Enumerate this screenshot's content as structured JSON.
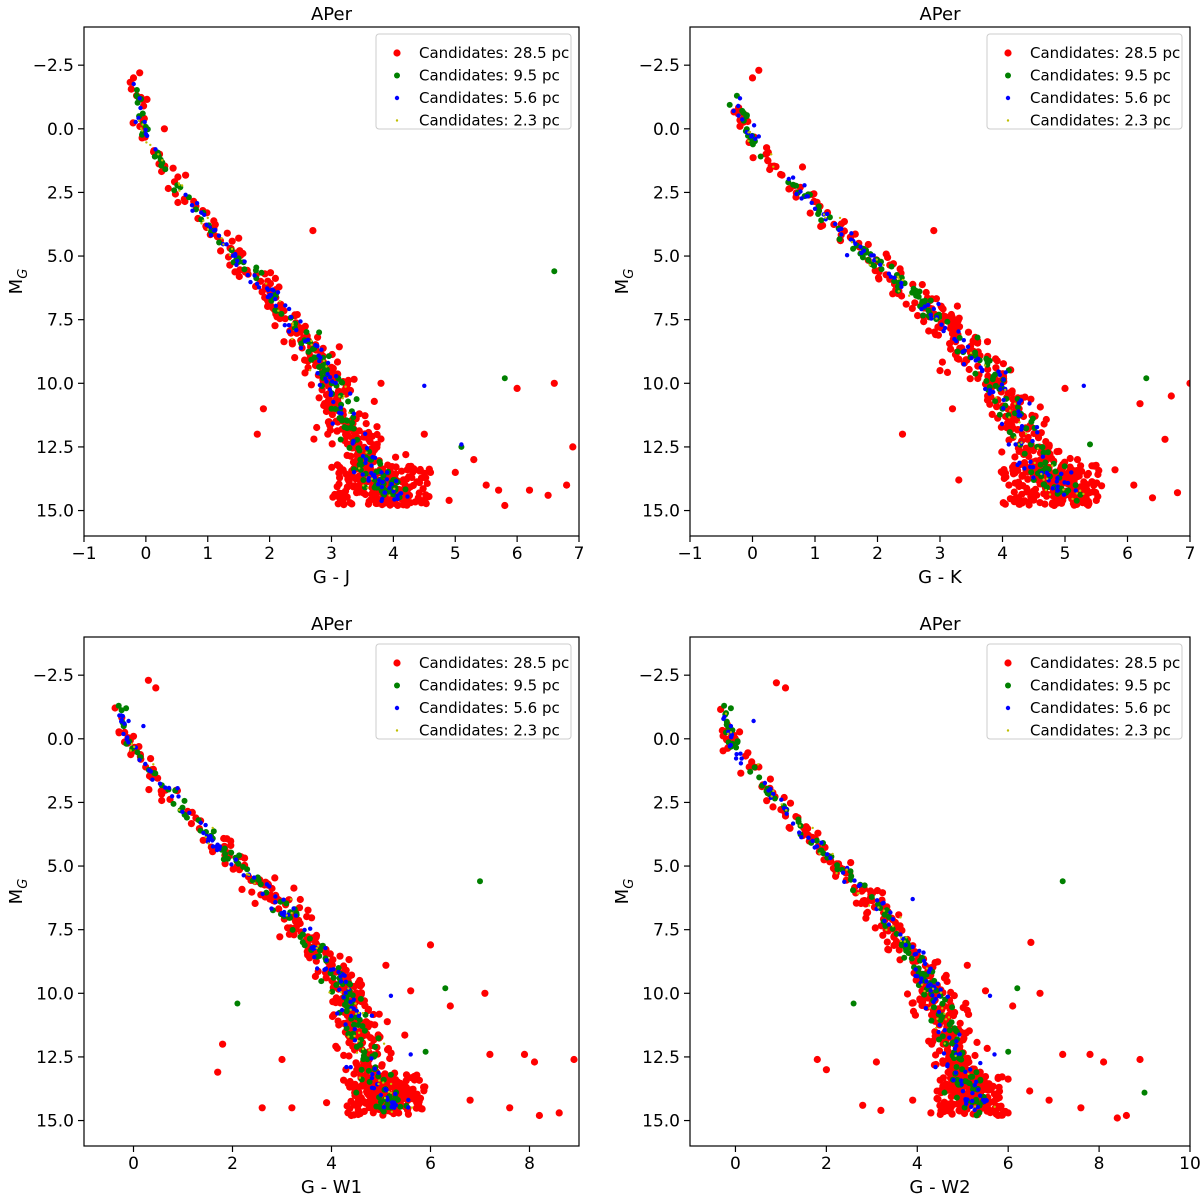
{
  "legend_entries": [
    "Candidates: 28.5 pc",
    "Candidates: 9.5 pc",
    "Candidates: 5.6 pc",
    "Candidates: 2.3 pc"
  ],
  "series_colors": [
    "#ff0000",
    "#008000",
    "#0000ff",
    "#bfbf00"
  ],
  "chart_data": [
    {
      "type": "scatter",
      "title": "APer",
      "xlabel": "G - J",
      "ylabel": "M_G",
      "xlim": [
        -1,
        7
      ],
      "ylim": [
        16,
        -4
      ],
      "y_inverted": true,
      "xticks": [
        -1,
        0,
        1,
        2,
        3,
        4,
        5,
        6,
        7
      ],
      "yticks": [
        -2.5,
        0.0,
        2.5,
        5.0,
        7.5,
        10.0,
        12.5,
        15.0
      ],
      "legend": "top-right",
      "sequence": {
        "x0": -0.2,
        "y0": -2.0,
        "knees": [
          [
            0.0,
            0.5
          ],
          [
            1.0,
            3.8
          ],
          [
            2.0,
            6.5
          ],
          [
            2.8,
            9.0
          ],
          [
            3.2,
            11.0
          ],
          [
            3.6,
            13.3
          ],
          [
            4.0,
            14.6
          ]
        ],
        "spread": 0.35
      },
      "series": [
        {
          "name": "Candidates: 28.5 pc",
          "color": "#ff0000",
          "points": [
            [
              -0.2,
              -2.0
            ],
            [
              -0.1,
              -2.2
            ],
            [
              -0.15,
              -1.3
            ],
            [
              0.3,
              0.0
            ],
            [
              1.5,
              4.3
            ],
            [
              2.7,
              4.0
            ],
            [
              1.9,
              11.0
            ],
            [
              1.8,
              12.0
            ],
            [
              3.8,
              10.0
            ],
            [
              4.5,
              12.0
            ],
            [
              5.0,
              13.5
            ],
            [
              5.5,
              14.0
            ],
            [
              5.7,
              14.2
            ],
            [
              6.2,
              14.2
            ],
            [
              6.5,
              14.4
            ],
            [
              6.8,
              14.0
            ],
            [
              6.9,
              12.5
            ],
            [
              6.6,
              10.0
            ],
            [
              6.0,
              10.2
            ],
            [
              4.2,
              12.8
            ],
            [
              4.6,
              13.5
            ],
            [
              5.3,
              13.0
            ],
            [
              5.8,
              14.8
            ],
            [
              4.9,
              14.6
            ]
          ]
        },
        {
          "name": "Candidates: 9.5 pc",
          "color": "#008000",
          "points": [
            [
              -0.15,
              -1.3
            ],
            [
              -0.05,
              -0.6
            ],
            [
              6.6,
              5.6
            ],
            [
              5.8,
              9.8
            ],
            [
              5.1,
              12.5
            ],
            [
              4.0,
              13.8
            ],
            [
              3.0,
              11.0
            ],
            [
              2.8,
              8.0
            ]
          ]
        },
        {
          "name": "Candidates: 5.6 pc",
          "color": "#0000ff",
          "points": [
            [
              -0.1,
              -1.2
            ],
            [
              0.0,
              0.2
            ],
            [
              4.5,
              10.1
            ],
            [
              5.1,
              12.4
            ],
            [
              3.9,
              13.5
            ]
          ]
        },
        {
          "name": "Candidates: 2.3 pc",
          "color": "#bfbf00",
          "points": [
            [
              0.2,
              1.0
            ],
            [
              1.0,
              3.5
            ],
            [
              3.2,
              10.5
            ]
          ]
        }
      ]
    },
    {
      "type": "scatter",
      "title": "APer",
      "xlabel": "G - K",
      "ylabel": "M_G",
      "xlim": [
        -1,
        7
      ],
      "ylim": [
        16,
        -4
      ],
      "y_inverted": true,
      "xticks": [
        -1,
        0,
        1,
        2,
        3,
        4,
        5,
        6,
        7
      ],
      "yticks": [
        -2.5,
        0.0,
        2.5,
        5.0,
        7.5,
        10.0,
        12.5,
        15.0
      ],
      "legend": "top-right",
      "sequence": {
        "x0": -0.3,
        "y0": -1.3,
        "knees": [
          [
            0.0,
            0.5
          ],
          [
            1.3,
            3.8
          ],
          [
            2.6,
            6.5
          ],
          [
            3.6,
            9.0
          ],
          [
            4.2,
            11.0
          ],
          [
            4.6,
            13.3
          ],
          [
            5.1,
            14.6
          ]
        ],
        "spread": 0.4
      },
      "series": [
        {
          "name": "Candidates: 28.5 pc",
          "color": "#ff0000",
          "points": [
            [
              0.0,
              -2.0
            ],
            [
              0.1,
              -2.3
            ],
            [
              -0.2,
              -0.1
            ],
            [
              0.8,
              1.5
            ],
            [
              1.7,
              4.5
            ],
            [
              2.9,
              4.0
            ],
            [
              2.4,
              12.0
            ],
            [
              3.3,
              13.8
            ],
            [
              3.0,
              9.5
            ],
            [
              3.2,
              11.0
            ],
            [
              5.2,
              13.0
            ],
            [
              5.8,
              13.4
            ],
            [
              6.1,
              14.0
            ],
            [
              6.4,
              14.5
            ],
            [
              6.8,
              14.3
            ],
            [
              7.0,
              10.0
            ],
            [
              6.7,
              10.5
            ],
            [
              6.6,
              12.2
            ],
            [
              5.0,
              10.2
            ],
            [
              6.2,
              10.8
            ],
            [
              5.5,
              14.6
            ],
            [
              4.8,
              14.7
            ]
          ]
        },
        {
          "name": "Candidates: 9.5 pc",
          "color": "#008000",
          "points": [
            [
              -0.25,
              -1.3
            ],
            [
              -0.1,
              -0.5
            ],
            [
              6.3,
              9.8
            ],
            [
              5.4,
              12.4
            ],
            [
              4.5,
              13.8
            ],
            [
              4.0,
              11.0
            ],
            [
              3.6,
              8.2
            ]
          ]
        },
        {
          "name": "Candidates: 5.6 pc",
          "color": "#0000ff",
          "points": [
            [
              -0.2,
              -1.2
            ],
            [
              0.1,
              0.3
            ],
            [
              5.3,
              10.1
            ],
            [
              5.1,
              13.5
            ],
            [
              4.1,
              12.4
            ]
          ]
        },
        {
          "name": "Candidates: 2.3 pc",
          "color": "#bfbf00",
          "points": [
            [
              0.3,
              1.0
            ],
            [
              1.4,
              3.5
            ],
            [
              4.2,
              10.8
            ]
          ]
        }
      ]
    },
    {
      "type": "scatter",
      "title": "APer",
      "xlabel": "G - W1",
      "ylabel": "M_G",
      "xlim": [
        -1,
        9
      ],
      "ylim": [
        16,
        -4
      ],
      "y_inverted": true,
      "xticks": [
        0,
        2,
        4,
        6,
        8
      ],
      "yticks": [
        -2.5,
        0.0,
        2.5,
        5.0,
        7.5,
        10.0,
        12.5,
        15.0
      ],
      "legend": "top-right",
      "sequence": {
        "x0": -0.35,
        "y0": -1.3,
        "knees": [
          [
            0.0,
            0.5
          ],
          [
            1.5,
            3.8
          ],
          [
            3.0,
            6.5
          ],
          [
            4.0,
            9.0
          ],
          [
            4.5,
            11.0
          ],
          [
            4.9,
            13.3
          ],
          [
            5.3,
            14.6
          ]
        ],
        "spread": 0.45
      },
      "series": [
        {
          "name": "Candidates: 28.5 pc",
          "color": "#ff0000",
          "points": [
            [
              0.3,
              -2.3
            ],
            [
              0.45,
              -2.0
            ],
            [
              0.0,
              -0.1
            ],
            [
              2.1,
              5.0
            ],
            [
              1.8,
              12.0
            ],
            [
              1.7,
              13.1
            ],
            [
              3.0,
              12.6
            ],
            [
              3.2,
              14.5
            ],
            [
              2.6,
              14.5
            ],
            [
              6.0,
              8.1
            ],
            [
              6.4,
              10.5
            ],
            [
              7.1,
              10.0
            ],
            [
              7.2,
              12.4
            ],
            [
              7.9,
              12.4
            ],
            [
              8.1,
              12.7
            ],
            [
              8.9,
              12.6
            ],
            [
              8.6,
              14.7
            ],
            [
              8.2,
              14.8
            ],
            [
              7.6,
              14.5
            ],
            [
              6.8,
              14.2
            ],
            [
              5.6,
              9.9
            ],
            [
              5.1,
              8.9
            ],
            [
              4.4,
              14.8
            ],
            [
              3.9,
              14.3
            ]
          ]
        },
        {
          "name": "Candidates: 9.5 pc",
          "color": "#008000",
          "points": [
            [
              -0.3,
              -1.3
            ],
            [
              -0.15,
              -1.2
            ],
            [
              7.0,
              5.6
            ],
            [
              2.1,
              10.4
            ],
            [
              6.3,
              9.8
            ],
            [
              5.9,
              12.3
            ],
            [
              4.5,
              13.9
            ],
            [
              5.2,
              13.2
            ]
          ]
        },
        {
          "name": "Candidates: 5.6 pc",
          "color": "#0000ff",
          "points": [
            [
              -0.1,
              -0.7
            ],
            [
              0.2,
              -0.5
            ],
            [
              5.2,
              10.1
            ],
            [
              5.6,
              12.4
            ],
            [
              4.3,
              12.9
            ]
          ]
        },
        {
          "name": "Candidates: 2.3 pc",
          "color": "#bfbf00",
          "points": [
            [
              0.4,
              1.0
            ],
            [
              1.6,
              3.5
            ],
            [
              4.5,
              10.8
            ]
          ]
        }
      ]
    },
    {
      "type": "scatter",
      "title": "APer",
      "xlabel": "G - W2",
      "ylabel": "M_G",
      "xlim": [
        -1,
        10
      ],
      "ylim": [
        16,
        -4
      ],
      "y_inverted": true,
      "xticks": [
        0,
        2,
        4,
        6,
        8,
        10
      ],
      "yticks": [
        -2.5,
        0.0,
        2.5,
        5.0,
        7.5,
        10.0,
        12.5,
        15.0
      ],
      "legend": "top-right",
      "sequence": {
        "x0": -0.3,
        "y0": -1.3,
        "knees": [
          [
            0.0,
            0.5
          ],
          [
            1.6,
            3.8
          ],
          [
            3.1,
            6.5
          ],
          [
            4.1,
            9.0
          ],
          [
            4.6,
            11.0
          ],
          [
            5.0,
            13.3
          ],
          [
            5.4,
            14.6
          ]
        ],
        "spread": 0.45
      },
      "series": [
        {
          "name": "Candidates: 28.5 pc",
          "color": "#ff0000",
          "points": [
            [
              0.9,
              -2.2
            ],
            [
              1.1,
              -2.0
            ],
            [
              -0.2,
              -0.3
            ],
            [
              2.2,
              5.0
            ],
            [
              1.8,
              12.6
            ],
            [
              2.0,
              13.0
            ],
            [
              3.1,
              12.7
            ],
            [
              3.2,
              14.6
            ],
            [
              2.8,
              14.4
            ],
            [
              6.1,
              10.5
            ],
            [
              6.7,
              10.0
            ],
            [
              7.2,
              12.4
            ],
            [
              7.8,
              12.4
            ],
            [
              8.1,
              12.7
            ],
            [
              8.9,
              12.6
            ],
            [
              8.6,
              14.8
            ],
            [
              8.4,
              14.9
            ],
            [
              7.6,
              14.5
            ],
            [
              6.9,
              14.2
            ],
            [
              5.5,
              9.9
            ],
            [
              5.1,
              8.9
            ],
            [
              6.5,
              8.0
            ],
            [
              4.3,
              14.7
            ],
            [
              3.9,
              14.2
            ]
          ]
        },
        {
          "name": "Candidates: 9.5 pc",
          "color": "#008000",
          "points": [
            [
              -0.25,
              -1.3
            ],
            [
              -0.1,
              -1.2
            ],
            [
              7.2,
              5.6
            ],
            [
              2.6,
              10.4
            ],
            [
              6.2,
              9.8
            ],
            [
              9.0,
              13.9
            ],
            [
              6.0,
              12.3
            ],
            [
              4.6,
              13.9
            ],
            [
              5.3,
              13.1
            ]
          ]
        },
        {
          "name": "Candidates: 5.6 pc",
          "color": "#0000ff",
          "points": [
            [
              0.4,
              -0.7
            ],
            [
              -0.1,
              -0.5
            ],
            [
              3.9,
              6.3
            ],
            [
              5.6,
              10.1
            ],
            [
              5.7,
              12.4
            ],
            [
              4.4,
              12.9
            ]
          ]
        },
        {
          "name": "Candidates: 2.3 pc",
          "color": "#bfbf00",
          "points": [
            [
              0.5,
              1.0
            ],
            [
              1.7,
              3.5
            ],
            [
              4.6,
              10.8
            ]
          ]
        }
      ]
    }
  ]
}
